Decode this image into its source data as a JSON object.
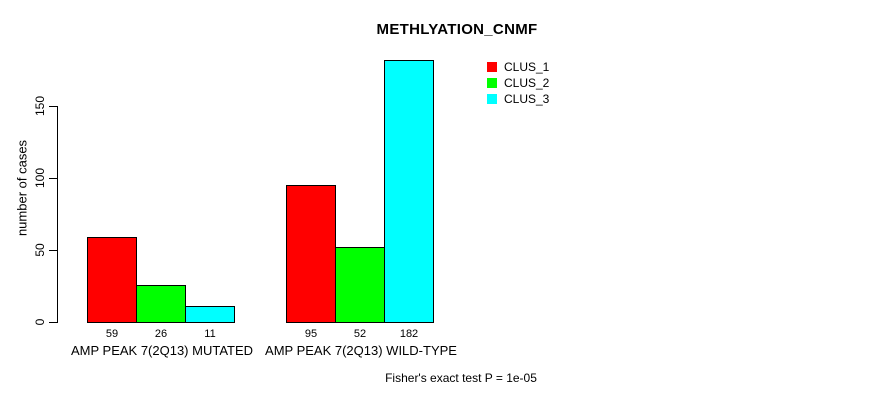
{
  "chart_data": {
    "type": "bar",
    "title": "METHLYATION_CNMF",
    "ylabel": "number of cases",
    "xlabel": "",
    "ylim": [
      0,
      150
    ],
    "yticks": [
      0,
      50,
      100,
      150
    ],
    "grid": false,
    "background": "#ffffff",
    "axis_color": "#000000",
    "bar_value_labels_shown": true,
    "legend_position": "top-right",
    "categories": [
      "AMP PEAK  7(2Q13) MUTATED",
      "AMP PEAK  7(2Q13) WILD-TYPE"
    ],
    "series": [
      {
        "name": "CLUS_1",
        "color": "#ff0000",
        "values": [
          59,
          95
        ]
      },
      {
        "name": "CLUS_2",
        "color": "#00ff00",
        "values": [
          26,
          52
        ]
      },
      {
        "name": "CLUS_3",
        "color": "#00ffff",
        "values": [
          11,
          182
        ]
      }
    ],
    "annotation": "Fisher's exact test P = 1e-05"
  }
}
